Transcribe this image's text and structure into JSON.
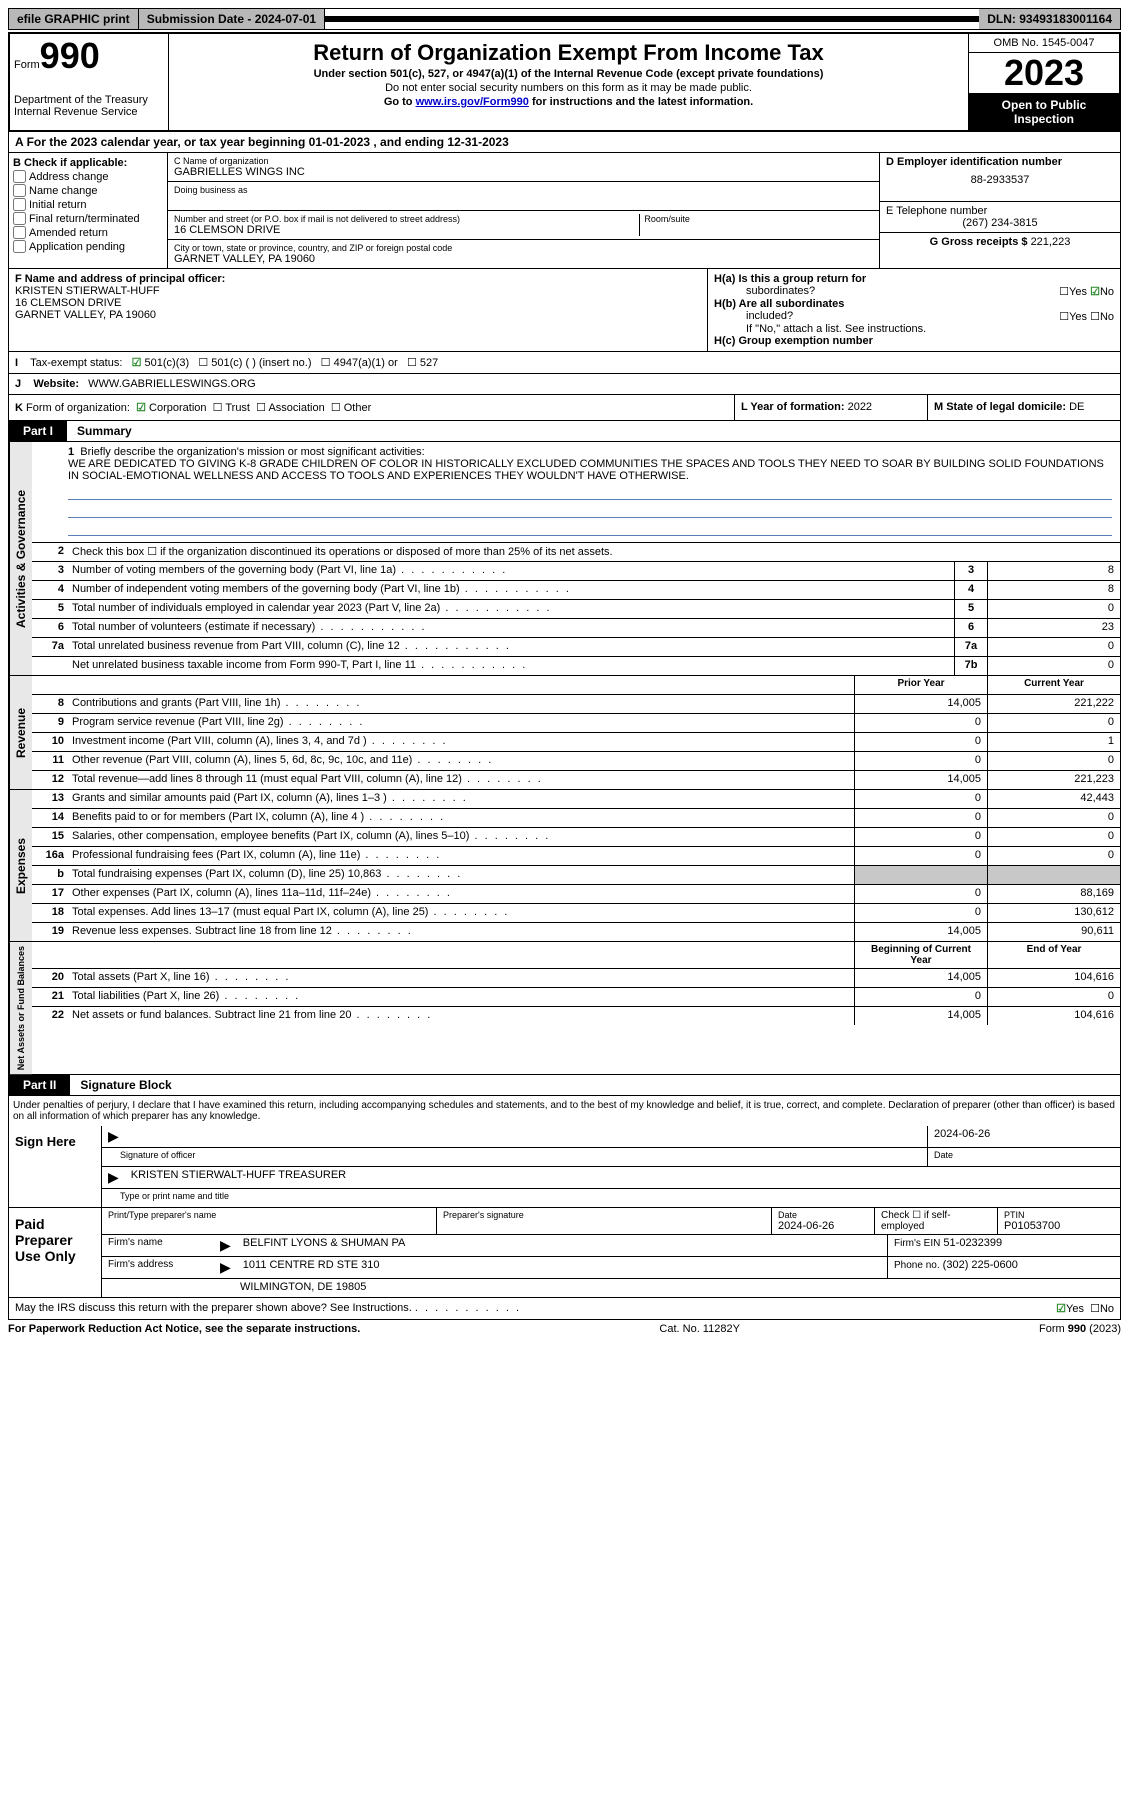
{
  "topbar": {
    "efile": "efile GRAPHIC print",
    "submission": "Submission Date - 2024-07-01",
    "dln": "DLN: 93493183001164"
  },
  "header": {
    "form_prefix": "Form",
    "form_num": "990",
    "dept": "Department of the Treasury",
    "irs": "Internal Revenue Service",
    "title": "Return of Organization Exempt From Income Tax",
    "subtitle": "Under section 501(c), 527, or 4947(a)(1) of the Internal Revenue Code (except private foundations)",
    "ssn_note": "Do not enter social security numbers on this form as it may be made public.",
    "goto_prefix": "Go to ",
    "goto_link": "www.irs.gov/Form990",
    "goto_suffix": " for instructions and the latest information.",
    "omb": "OMB No. 1545-0047",
    "year": "2023",
    "open_public_1": "Open to Public",
    "open_public_2": "Inspection"
  },
  "section_a": {
    "tax_year": "For the 2023 calendar year, or tax year beginning 01-01-2023    , and ending 12-31-2023",
    "b_label": "B Check if applicable:",
    "b_items": [
      "Address change",
      "Name change",
      "Initial return",
      "Final return/terminated",
      "Amended return",
      "Application pending"
    ],
    "c_label": "C Name of organization",
    "c_name": "GABRIELLES WINGS INC",
    "dba_label": "Doing business as",
    "addr_label": "Number and street (or P.O. box if mail is not delivered to street address)",
    "room_label": "Room/suite",
    "addr": "16 CLEMSON DRIVE",
    "city_label": "City or town, state or province, country, and ZIP or foreign postal code",
    "city": "GARNET VALLEY, PA  19060",
    "d_label": "D Employer identification number",
    "d_ein": "88-2933537",
    "e_label": "E Telephone number",
    "e_phone": "(267) 234-3815",
    "g_label": "G Gross receipts $",
    "g_amount": "221,223",
    "f_label": "F Name and address of principal officer:",
    "f_name": "KRISTEN STIERWALT-HUFF",
    "f_addr": "16 CLEMSON DRIVE",
    "f_city": "GARNET VALLEY, PA  19060",
    "ha_label": "H(a)  Is this a group return for",
    "ha_sub": "subordinates?",
    "hb_label": "H(b)  Are all subordinates",
    "hb_sub": "included?",
    "hb_note": "If \"No,\" attach a list. See instructions.",
    "hc_label": "H(c)  Group exemption number",
    "yes": "Yes",
    "no": "No"
  },
  "row_i": {
    "label": "I",
    "text": "Tax-exempt status:",
    "opt1": "501(c)(3)",
    "opt2": "501(c) (  ) (insert no.)",
    "opt3": "4947(a)(1) or",
    "opt4": "527"
  },
  "row_j": {
    "label": "J",
    "text": "Website:",
    "value": "WWW.GABRIELLESWINGS.ORG"
  },
  "row_k": {
    "label": "K",
    "text": "Form of organization:",
    "opts": [
      "Corporation",
      "Trust",
      "Association",
      "Other"
    ],
    "l_label": "L Year of formation:",
    "l_val": "2022",
    "m_label": "M State of legal domicile:",
    "m_val": "DE"
  },
  "part1": {
    "tab": "Part I",
    "title": "Summary",
    "q1_num": "1",
    "q1": "Briefly describe the organization's mission or most significant activities:",
    "mission": "WE ARE DEDICATED TO GIVING K-8 GRADE CHILDREN OF COLOR IN HISTORICALLY EXCLUDED COMMUNITIES THE SPACES AND TOOLS THEY NEED TO SOAR BY BUILDING SOLID FOUNDATIONS IN SOCIAL-EMOTIONAL WELLNESS AND ACCESS TO TOOLS AND EXPERIENCES THEY WOULDN'T HAVE OTHERWISE.",
    "q2_num": "2",
    "q2": "Check this box ☐ if the organization discontinued its operations or disposed of more than 25% of its net assets.",
    "headers": {
      "prior": "Prior Year",
      "current": "Current Year",
      "begin": "Beginning of Current Year",
      "end": "End of Year"
    },
    "gov_rows": [
      {
        "n": "3",
        "d": "Number of voting members of the governing body (Part VI, line 1a)",
        "b": "3",
        "v": "8"
      },
      {
        "n": "4",
        "d": "Number of independent voting members of the governing body (Part VI, line 1b)",
        "b": "4",
        "v": "8"
      },
      {
        "n": "5",
        "d": "Total number of individuals employed in calendar year 2023 (Part V, line 2a)",
        "b": "5",
        "v": "0"
      },
      {
        "n": "6",
        "d": "Total number of volunteers (estimate if necessary)",
        "b": "6",
        "v": "23"
      },
      {
        "n": "7a",
        "d": "Total unrelated business revenue from Part VIII, column (C), line 12",
        "b": "7a",
        "v": "0"
      },
      {
        "n": "",
        "d": "Net unrelated business taxable income from Form 990-T, Part I, line 11",
        "b": "7b",
        "v": "0"
      }
    ],
    "rev_rows": [
      {
        "n": "8",
        "d": "Contributions and grants (Part VIII, line 1h)",
        "p": "14,005",
        "c": "221,222"
      },
      {
        "n": "9",
        "d": "Program service revenue (Part VIII, line 2g)",
        "p": "0",
        "c": "0"
      },
      {
        "n": "10",
        "d": "Investment income (Part VIII, column (A), lines 3, 4, and 7d )",
        "p": "0",
        "c": "1"
      },
      {
        "n": "11",
        "d": "Other revenue (Part VIII, column (A), lines 5, 6d, 8c, 9c, 10c, and 11e)",
        "p": "0",
        "c": "0"
      },
      {
        "n": "12",
        "d": "Total revenue—add lines 8 through 11 (must equal Part VIII, column (A), line 12)",
        "p": "14,005",
        "c": "221,223"
      }
    ],
    "exp_rows": [
      {
        "n": "13",
        "d": "Grants and similar amounts paid (Part IX, column (A), lines 1–3 )",
        "p": "0",
        "c": "42,443"
      },
      {
        "n": "14",
        "d": "Benefits paid to or for members (Part IX, column (A), line 4 )",
        "p": "0",
        "c": "0"
      },
      {
        "n": "15",
        "d": "Salaries, other compensation, employee benefits (Part IX, column (A), lines 5–10)",
        "p": "0",
        "c": "0"
      },
      {
        "n": "16a",
        "d": "Professional fundraising fees (Part IX, column (A), line 11e)",
        "p": "0",
        "c": "0"
      },
      {
        "n": "b",
        "d": "Total fundraising expenses (Part IX, column (D), line 25) 10,863",
        "p": "",
        "c": "",
        "gray": true
      },
      {
        "n": "17",
        "d": "Other expenses (Part IX, column (A), lines 11a–11d, 11f–24e)",
        "p": "0",
        "c": "88,169"
      },
      {
        "n": "18",
        "d": "Total expenses. Add lines 13–17 (must equal Part IX, column (A), line 25)",
        "p": "0",
        "c": "130,612"
      },
      {
        "n": "19",
        "d": "Revenue less expenses. Subtract line 18 from line 12",
        "p": "14,005",
        "c": "90,611"
      }
    ],
    "net_rows": [
      {
        "n": "20",
        "d": "Total assets (Part X, line 16)",
        "p": "14,005",
        "c": "104,616"
      },
      {
        "n": "21",
        "d": "Total liabilities (Part X, line 26)",
        "p": "0",
        "c": "0"
      },
      {
        "n": "22",
        "d": "Net assets or fund balances. Subtract line 21 from line 20",
        "p": "14,005",
        "c": "104,616"
      }
    ],
    "side_labels": {
      "gov": "Activities & Governance",
      "rev": "Revenue",
      "exp": "Expenses",
      "net": "Net Assets or Fund Balances"
    }
  },
  "part2": {
    "tab": "Part II",
    "title": "Signature Block",
    "perjury": "Under penalties of perjury, I declare that I have examined this return, including accompanying schedules and statements, and to the best of my knowledge and belief, it is true, correct, and complete. Declaration of preparer (other than officer) is based on all information of which preparer has any knowledge.",
    "sign_here": "Sign Here",
    "sig_officer_label": "Signature of officer",
    "sig_officer_name": "KRISTEN STIERWALT-HUFF  TREASURER",
    "sig_date_label": "Date",
    "sig_date": "2024-06-26",
    "type_label": "Type or print name and title",
    "paid": "Paid Preparer Use Only",
    "prep_name_label": "Print/Type preparer's name",
    "prep_sig_label": "Preparer's signature",
    "prep_date_label": "Date",
    "prep_date": "2024-06-26",
    "self_emp": "Check ☐ if self-employed",
    "ptin_label": "PTIN",
    "ptin": "P01053700",
    "firm_name_label": "Firm's name",
    "firm_name": "BELFINT LYONS & SHUMAN PA",
    "firm_ein_label": "Firm's EIN",
    "firm_ein": "51-0232399",
    "firm_addr_label": "Firm's address",
    "firm_addr": "1011 CENTRE RD STE 310",
    "firm_city": "WILMINGTON, DE  19805",
    "phone_label": "Phone no.",
    "phone": "(302) 225-0600"
  },
  "irs_discuss": {
    "text": "May the IRS discuss this return with the preparer shown above? See Instructions.",
    "yes": "Yes",
    "no": "No"
  },
  "footer": {
    "left": "For Paperwork Reduction Act Notice, see the separate instructions.",
    "center": "Cat. No. 11282Y",
    "right": "Form 990 (2023)"
  },
  "colors": {
    "gray_bg": "#b8b8b8",
    "light_gray": "#e8e8e8",
    "cell_gray": "#c8c8c8",
    "link": "#0000cc",
    "line_blue": "#5a7fb5",
    "check_green": "#2a8a2a"
  }
}
